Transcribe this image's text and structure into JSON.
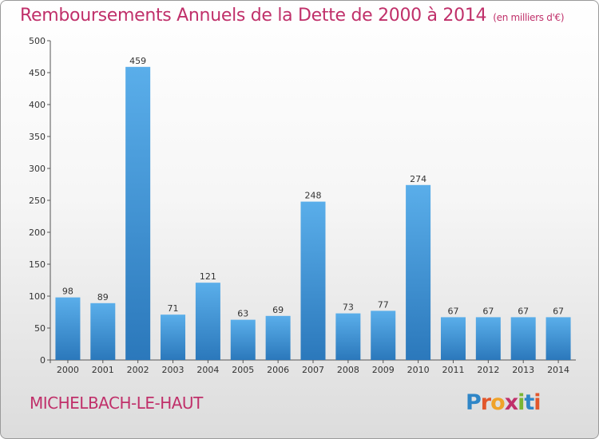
{
  "header": {
    "title": "Remboursements Annuels de la Dette de 2000 à 2014",
    "unit": "(en milliers d'€)"
  },
  "footer": {
    "commune": "MICHELBACH-LE-HAUT",
    "logo": "Proxiti"
  },
  "colors": {
    "bar_top": "#5aaeea",
    "bar_bottom": "#2b78bb",
    "title": "#c0306a"
  },
  "chart_data": {
    "type": "bar",
    "title": "Remboursements Annuels de la Dette de 2000 à 2014",
    "xlabel": "",
    "ylabel": "",
    "categories": [
      "2000",
      "2001",
      "2002",
      "2003",
      "2004",
      "2005",
      "2006",
      "2007",
      "2008",
      "2009",
      "2010",
      "2011",
      "2012",
      "2013",
      "2014"
    ],
    "values": [
      98,
      89,
      459,
      71,
      121,
      63,
      69,
      248,
      73,
      77,
      274,
      67,
      67,
      67,
      67
    ],
    "ylim": [
      0,
      500
    ],
    "yticks": [
      0,
      50,
      100,
      150,
      200,
      250,
      300,
      350,
      400,
      450,
      500
    ],
    "grid": false,
    "legend": "none"
  }
}
